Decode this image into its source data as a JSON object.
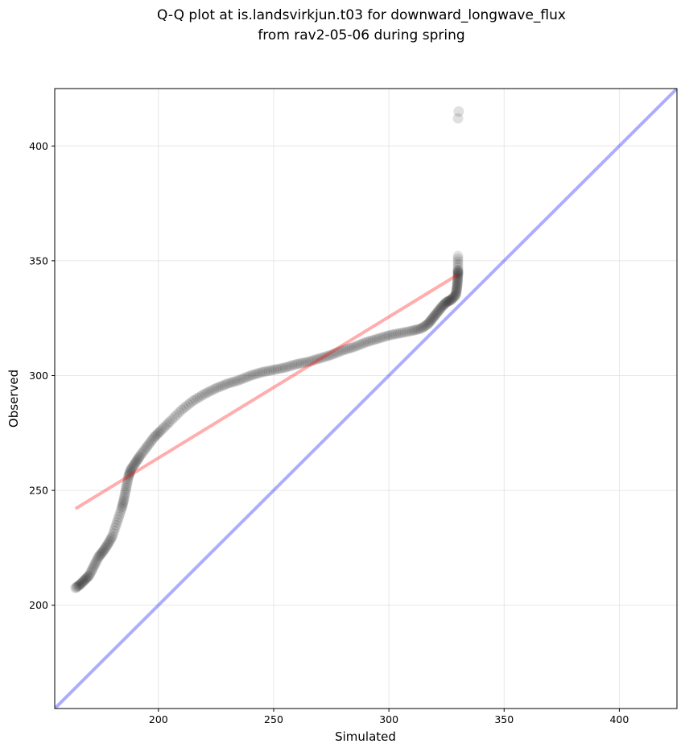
{
  "chart_data": {
    "type": "scatter",
    "title_lines": [
      "Q-Q plot at is.landsvirkjun.t03 for downward_longwave_flux",
      "from rav2-05-06 during spring"
    ],
    "xlabel": "Simulated",
    "ylabel": "Observed",
    "xlim": [
      155,
      425
    ],
    "ylim": [
      155,
      425
    ],
    "xticks": [
      200,
      250,
      300,
      350,
      400
    ],
    "yticks": [
      200,
      250,
      300,
      350,
      400
    ],
    "grid": true,
    "colors": {
      "points": "#000000",
      "fit_line": "#ff0000",
      "identity_line": "#0000ff",
      "grid": "#dddddd"
    },
    "identity_line": {
      "from": [
        155,
        155
      ],
      "to": [
        425,
        425
      ]
    },
    "fit_line": {
      "from": [
        164,
        242
      ],
      "to": [
        330,
        344
      ]
    },
    "quantile_curve": [
      [
        164,
        207.5
      ],
      [
        166,
        209
      ],
      [
        168,
        211
      ],
      [
        170,
        213
      ],
      [
        172,
        217
      ],
      [
        174,
        221
      ],
      [
        176,
        223.5
      ],
      [
        178,
        226.5
      ],
      [
        180,
        230
      ],
      [
        182,
        236
      ],
      [
        184,
        242
      ],
      [
        185,
        246
      ],
      [
        186,
        251
      ],
      [
        187,
        256
      ],
      [
        188,
        259
      ],
      [
        190,
        262
      ],
      [
        192,
        265
      ],
      [
        195,
        269
      ],
      [
        198,
        273
      ],
      [
        201,
        276
      ],
      [
        205,
        280
      ],
      [
        210,
        285
      ],
      [
        215,
        289
      ],
      [
        220,
        292
      ],
      [
        225,
        294.5
      ],
      [
        230,
        296.5
      ],
      [
        235,
        298
      ],
      [
        240,
        300
      ],
      [
        245,
        301.5
      ],
      [
        250,
        302.5
      ],
      [
        255,
        303.5
      ],
      [
        260,
        305
      ],
      [
        265,
        306
      ],
      [
        270,
        307.5
      ],
      [
        275,
        309
      ],
      [
        280,
        311
      ],
      [
        285,
        312.5
      ],
      [
        290,
        314.5
      ],
      [
        295,
        316
      ],
      [
        300,
        317.5
      ],
      [
        305,
        318.5
      ],
      [
        310,
        319.5
      ],
      [
        314,
        320.5
      ],
      [
        317,
        322.5
      ],
      [
        319,
        325
      ],
      [
        321,
        327.5
      ],
      [
        323,
        330
      ],
      [
        325,
        332
      ],
      [
        327,
        333
      ],
      [
        329,
        335
      ],
      [
        329.5,
        338
      ],
      [
        329.8,
        341
      ],
      [
        330,
        344
      ],
      [
        330,
        346
      ],
      [
        330,
        352
      ],
      [
        330,
        412
      ],
      [
        330.3,
        415
      ]
    ]
  }
}
